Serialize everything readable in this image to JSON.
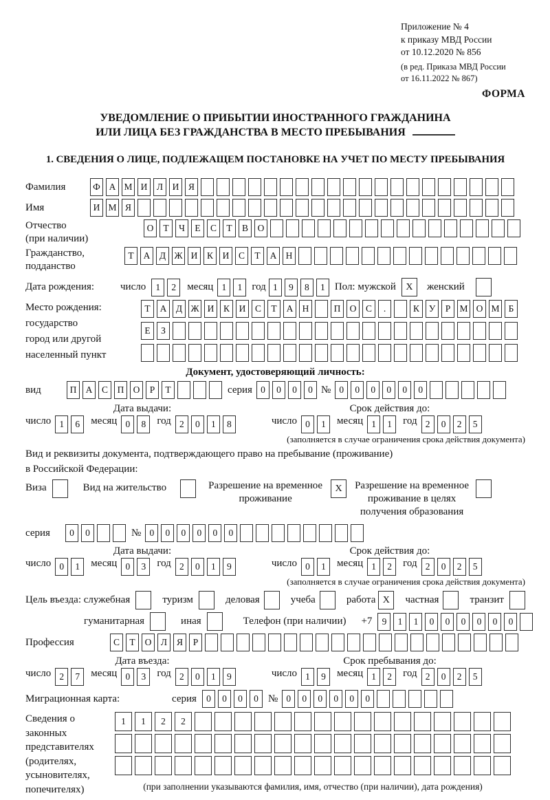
{
  "meta": {
    "appendix_line1": "Приложение № 4",
    "appendix_line2": "к приказу МВД России",
    "appendix_line3": "от 10.12.2020 № 856",
    "edition_line1": "(в ред. Приказа МВД России",
    "edition_line2": "от 16.11.2022 № 867)",
    "forma": "ФОРМА"
  },
  "title": {
    "line1": "УВЕДОМЛЕНИЕ О ПРИБЫТИИ ИНОСТРАННОГО ГРАЖДАНИНА",
    "line2": "ИЛИ ЛИЦА БЕЗ ГРАЖДАНСТВА В МЕСТО ПРЕБЫВАНИЯ"
  },
  "section1_title": "1. СВЕДЕНИЯ О ЛИЦЕ, ПОДЛЕЖАЩЕМ ПОСТАНОВКЕ НА УЧЕТ ПО МЕСТУ ПРЕБЫВАНИЯ",
  "labels": {
    "surname": "Фамилия",
    "name": "Имя",
    "patronymic_l1": "Отчество",
    "patronymic_l2": "(при наличии)",
    "citizenship_l1": "Гражданство,",
    "citizenship_l2": "подданство",
    "birth_date": "Дата рождения:",
    "day": "число",
    "month": "месяц",
    "year": "год",
    "sex_male": "Пол: мужской",
    "sex_female": "женский",
    "birthplace_l1": "Место рождения:",
    "birthplace_l2": "государство",
    "birthplace_l3": "город или другой",
    "birthplace_l4": "населенный пункт",
    "identity_doc_header": "Документ, удостоверяющий личность:",
    "kind": "вид",
    "series": "серия",
    "number": "№",
    "issue_date": "Дата выдачи:",
    "valid_until": "Срок действия до:",
    "validity_note": "(заполняется в случае ограничения срока действия документа)",
    "residence_doc_l1": "Вид и реквизиты документа, подтверждающего право на пребывание (проживание)",
    "residence_doc_l2": "в Российской Федерации:",
    "visa": "Виза",
    "residence_permit": "Вид на жительство",
    "temp_residence_l1": "Разрешение на временное",
    "temp_residence_l2": "проживание",
    "temp_residence_edu_l1": "Разрешение на временное",
    "temp_residence_edu_l2": "проживание в целях",
    "temp_residence_edu_l3": "получения образования",
    "purpose": "Цель въезда: служебная",
    "tourism": "туризм",
    "business": "деловая",
    "study": "учеба",
    "work": "работа",
    "private": "частная",
    "transit": "транзит",
    "humanitarian": "гуманитарная",
    "other": "иная",
    "phone": "Телефон (при наличии)",
    "phone_prefix": "+7",
    "profession": "Профессия",
    "entry_date": "Дата въезда:",
    "stay_until": "Срок пребывания до:",
    "migration_card": "Миграционная карта:",
    "representatives_l1": "Сведения о",
    "representatives_l2": "законных",
    "representatives_l3": "представителях",
    "representatives_l4": "(родителях,",
    "representatives_l5": "усыновителях,",
    "representatives_l6": "попечителях)",
    "representatives_note": "(при заполнении указываются фамилия, имя, отчество (при наличии), дата рождения)"
  },
  "cells": {
    "surname": {
      "t": "ФАМИЛИЯ",
      "n": 27
    },
    "given_name": {
      "t": "ИМЯ",
      "n": 27
    },
    "patronymic": {
      "t": "ОТЧЕСТВО",
      "n": 24
    },
    "citizenship": {
      "t": "ТАДЖИКИСТАН",
      "n": 25
    },
    "birth_day": {
      "t": "12",
      "n": 2
    },
    "birth_month": {
      "t": "11",
      "n": 2
    },
    "birth_year": {
      "t": "1981",
      "n": 4
    },
    "sex_male_box": {
      "t": "X",
      "n": 1
    },
    "sex_female_box": {
      "t": "",
      "n": 1
    },
    "birthplace_row1": {
      "t": "ТАДЖИКИСТАН ПОС. КУРМОМБ",
      "n": 24
    },
    "birthplace_row2": {
      "t": "ЕЗ",
      "n": 24
    },
    "birthplace_row3": {
      "t": "",
      "n": 24
    },
    "doc_kind": {
      "t": "ПАСПОРТ",
      "n": 10
    },
    "doc_series": {
      "t": "0000",
      "n": 4
    },
    "doc_number": {
      "t": "000000",
      "n": 11
    },
    "doc_issue_day": {
      "t": "16",
      "n": 2
    },
    "doc_issue_month": {
      "t": "08",
      "n": 2
    },
    "doc_issue_year": {
      "t": "2018",
      "n": 4
    },
    "doc_valid_day": {
      "t": "01",
      "n": 2
    },
    "doc_valid_month": {
      "t": "11",
      "n": 2
    },
    "doc_valid_year": {
      "t": "2025",
      "n": 4
    },
    "visa_box": {
      "t": "",
      "n": 1
    },
    "residence_permit_box": {
      "t": "",
      "n": 1
    },
    "temp_residence_box": {
      "t": "X",
      "n": 1
    },
    "temp_residence_edu_box": {
      "t": "",
      "n": 1
    },
    "permit_series": {
      "t": "00",
      "n": 4
    },
    "permit_number": {
      "t": "000000",
      "n": 14
    },
    "permit_issue_day": {
      "t": "01",
      "n": 2
    },
    "permit_issue_month": {
      "t": "03",
      "n": 2
    },
    "permit_issue_year": {
      "t": "2019",
      "n": 4
    },
    "permit_valid_day": {
      "t": "01",
      "n": 2
    },
    "permit_valid_month": {
      "t": "12",
      "n": 2
    },
    "permit_valid_year": {
      "t": "2025",
      "n": 4
    },
    "purpose_official_box": {
      "t": "",
      "n": 1
    },
    "purpose_tourism_box": {
      "t": "",
      "n": 1
    },
    "purpose_business_box": {
      "t": "",
      "n": 1
    },
    "purpose_study_box": {
      "t": "",
      "n": 1
    },
    "purpose_work_box": {
      "t": "X",
      "n": 1
    },
    "purpose_private_box": {
      "t": "",
      "n": 1
    },
    "purpose_transit_box": {
      "t": "",
      "n": 1
    },
    "purpose_humanitarian_box": {
      "t": "",
      "n": 1
    },
    "purpose_other_box": {
      "t": "",
      "n": 1
    },
    "phone_number": {
      "t": "911000000",
      "n": 10
    },
    "profession": {
      "t": "СТОЛЯР",
      "n": 26
    },
    "entry_day": {
      "t": "27",
      "n": 2
    },
    "entry_month": {
      "t": "03",
      "n": 2
    },
    "entry_year": {
      "t": "2019",
      "n": 4
    },
    "stay_day": {
      "t": "19",
      "n": 2
    },
    "stay_month": {
      "t": "12",
      "n": 2
    },
    "stay_year": {
      "t": "2025",
      "n": 4
    },
    "migcard_series": {
      "t": "0000",
      "n": 4
    },
    "migcard_number": {
      "t": "000000",
      "n": 11
    },
    "reps_row1": {
      "t": "1122",
      "n": 20
    },
    "reps_row2": {
      "t": "",
      "n": 20
    },
    "reps_row3": {
      "t": "",
      "n": 20
    }
  }
}
